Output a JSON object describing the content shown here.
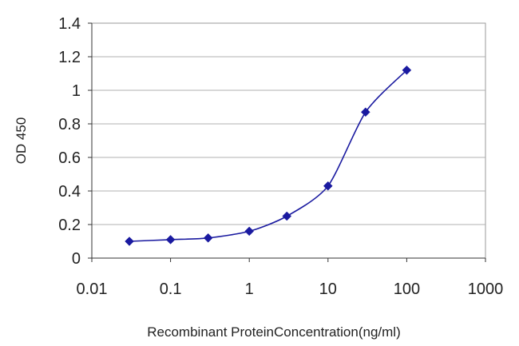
{
  "chart_data": {
    "type": "line",
    "title": "",
    "xlabel": "Recombinant ProteinConcentration(ng/ml)",
    "ylabel": "OD 450",
    "x_scale": "log",
    "xlim": [
      0.01,
      1000
    ],
    "ylim": [
      0,
      1.4
    ],
    "x_ticks": [
      "0.01",
      "0.1",
      "1",
      "10",
      "100",
      "1000"
    ],
    "y_ticks": [
      "0",
      "0.2",
      "0.4",
      "0.6",
      "0.8",
      "1",
      "1.2",
      "1.4"
    ],
    "grid": "horizontal",
    "legend": "none",
    "series": [
      {
        "x": [
          0.03,
          0.1,
          0.3,
          1,
          3,
          10,
          30,
          100
        ],
        "y": [
          0.1,
          0.11,
          0.12,
          0.16,
          0.25,
          0.43,
          0.87,
          1.12
        ],
        "color": "#1a1aa0",
        "marker": "diamond"
      }
    ]
  }
}
